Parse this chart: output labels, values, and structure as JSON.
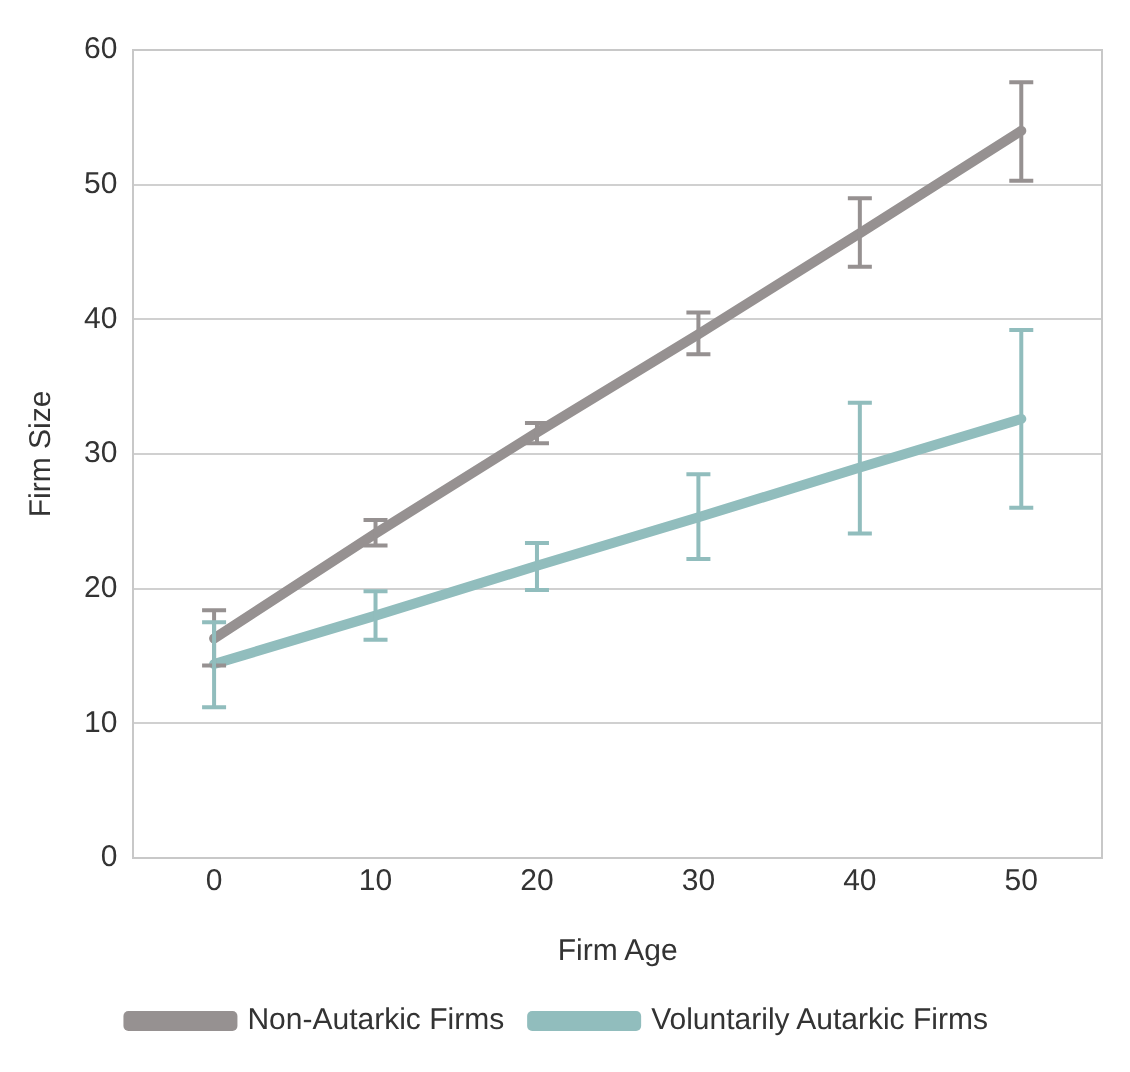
{
  "chart_data": {
    "type": "line",
    "xlabel": "Firm Age",
    "ylabel": "Firm Size",
    "x": [
      0,
      10,
      20,
      30,
      40,
      50
    ],
    "xlim": [
      -5,
      55
    ],
    "xticks": [
      0,
      10,
      20,
      30,
      40,
      50
    ],
    "ylim": [
      0,
      60
    ],
    "yticks": [
      0,
      10,
      20,
      30,
      40,
      50,
      60
    ],
    "grid": "y",
    "legend": "bottom",
    "marker": "none",
    "line_style": "solid",
    "series": [
      {
        "name": "Non-Autarkic Firms",
        "color": "#969191",
        "values": [
          16.3,
          24.1,
          31.6,
          38.9,
          46.4,
          54.0
        ],
        "errors": [
          [
            14.3,
            18.4
          ],
          [
            23.2,
            25.1
          ],
          [
            30.8,
            32.3
          ],
          [
            37.4,
            40.5
          ],
          [
            43.9,
            49.0
          ],
          [
            50.3,
            57.6
          ]
        ]
      },
      {
        "name": "Voluntarily Autarkic Firms",
        "color": "#91bdbd",
        "values": [
          14.4,
          18.0,
          21.7,
          25.3,
          29.0,
          32.6
        ],
        "errors": [
          [
            11.2,
            17.5
          ],
          [
            16.2,
            19.8
          ],
          [
            19.9,
            23.4
          ],
          [
            22.2,
            28.5
          ],
          [
            24.1,
            33.8
          ],
          [
            26.0,
            39.2
          ]
        ]
      }
    ]
  }
}
